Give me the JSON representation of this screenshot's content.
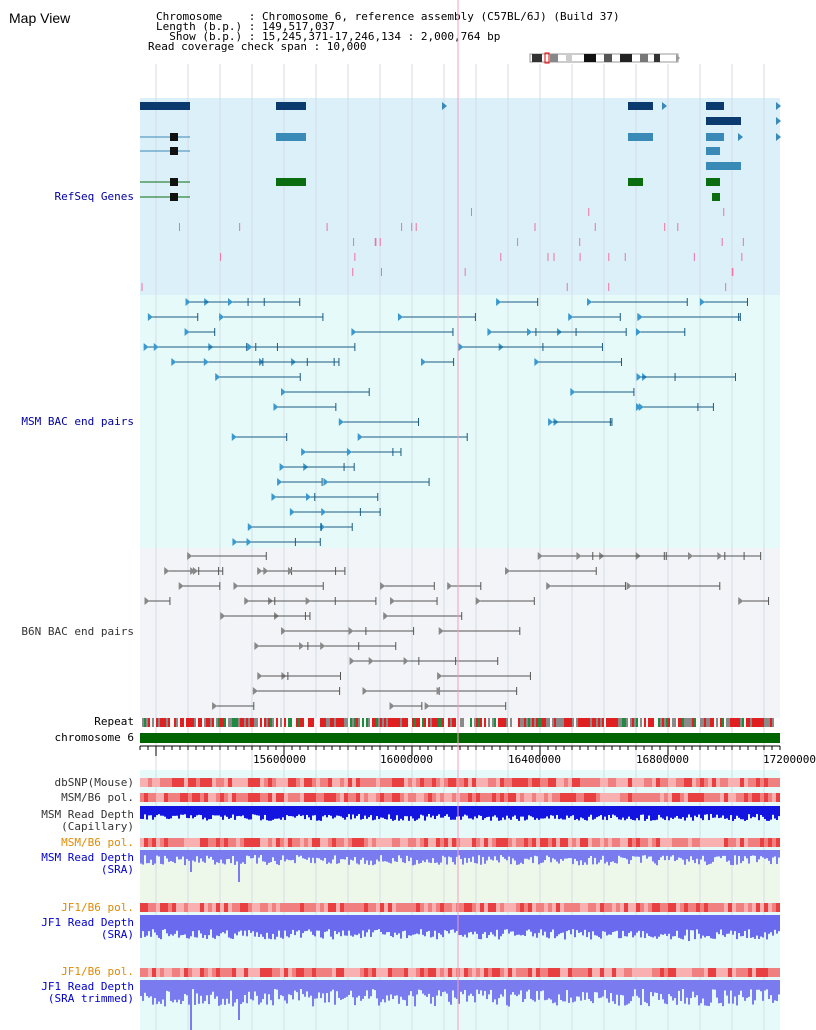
{
  "header": {
    "title": "Map View",
    "chromosome_line": "Chromosome    : Chromosome 6, reference assembly (C57BL/6J) (Build 37)",
    "length_line": "Length (b.p.) : 149,517,037",
    "show_line": "  Show (b.p.) : 15,245,371-17,246,134 : 2,000,764 bp",
    "coverage_line": "Read coverage check span : 10,000"
  },
  "tracks": {
    "refseq": "RefSeq Genes",
    "msm_bac": "MSM BAC end pairs",
    "b6n_bac": "B6N BAC end pairs",
    "repeat": "Repeat",
    "chromosome": "chromosome 6",
    "dbsnp": "dbSNP(Mouse)",
    "msm_b6_pol": "MSM/B6 pol.",
    "msm_depth_cap_1": "MSM Read Depth",
    "msm_depth_cap_2": "(Capillary)",
    "msm_b6_pol_2": "MSM/B6 pol.",
    "msm_depth_sra_1": "MSM Read Depth",
    "msm_depth_sra_2": "(SRA)",
    "jf1_b6_pol": "JF1/B6 pol.",
    "jf1_depth_sra_1": "JF1 Read Depth",
    "jf1_depth_sra_2": "(SRA)",
    "jf1_b6_pol_2": "JF1/B6 pol.",
    "jf1_depth_trim_1": "JF1 Read Depth",
    "jf1_depth_trim_2": "(SRA trimmed)"
  },
  "axis": {
    "ticks": [
      "15600000",
      "16000000",
      "16400000",
      "16800000",
      "17200000"
    ]
  },
  "colors": {
    "refseq_bg": "#dcf0fa",
    "bac_bg": "#e6fafa",
    "b6n_bg": "#f2f4f7",
    "chromosome": "#006400",
    "depth_dark": "#1010e0",
    "depth_light": "#7b7bf0",
    "pol": "#f08080"
  }
}
